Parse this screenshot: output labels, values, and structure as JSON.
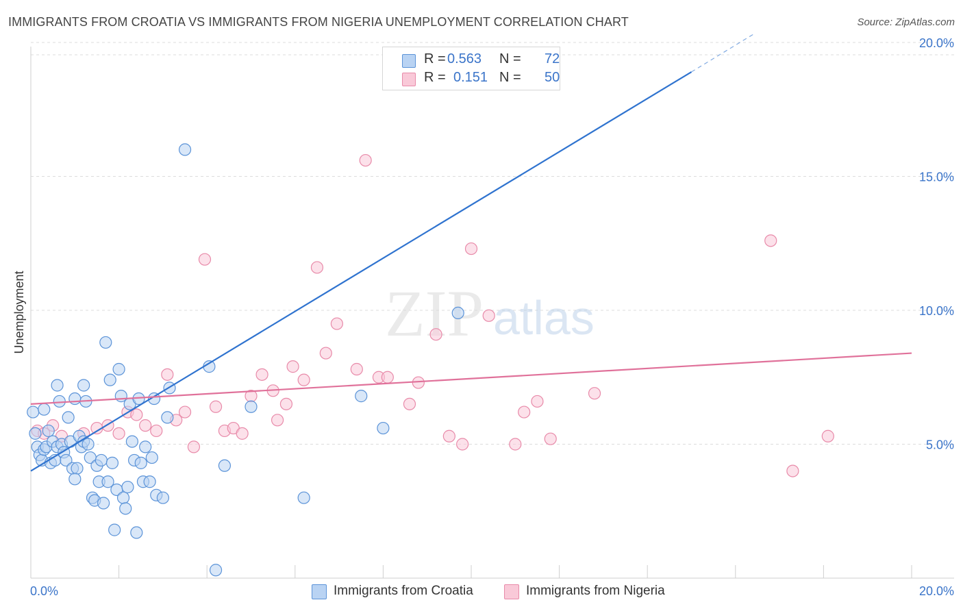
{
  "title": "IMMIGRANTS FROM CROATIA VS IMMIGRANTS FROM NIGERIA UNEMPLOYMENT CORRELATION CHART",
  "source": "Source: ZipAtlas.com",
  "watermark": {
    "zip": "ZIP",
    "atlas": "atlas"
  },
  "colors": {
    "croatia_fill": "#b9d3f3",
    "croatia_stroke": "#5b93d8",
    "croatia_line": "#2f73cf",
    "nigeria_fill": "#f9c9d8",
    "nigeria_stroke": "#e88aa9",
    "nigeria_line": "#e0719a",
    "axis_text": "#3a74c9",
    "grid": "#dcdcdc"
  },
  "legend": {
    "rows": [
      {
        "r_label": "R =",
        "r_value": "0.563",
        "n_label": "N =",
        "n_value": "72"
      },
      {
        "r_label": "R =",
        "r_value": "0.151",
        "n_label": "N =",
        "n_value": "50"
      }
    ],
    "bottom": [
      "Immigrants from Croatia",
      "Immigrants from Nigeria"
    ]
  },
  "chart_data": {
    "type": "scatter",
    "title": "IMMIGRANTS FROM CROATIA VS IMMIGRANTS FROM NIGERIA UNEMPLOYMENT CORRELATION CHART",
    "xlabel": "",
    "ylabel": "Unemployment",
    "xlim": [
      0,
      20
    ],
    "ylim": [
      0,
      20
    ],
    "x_tick_labels": [
      "0.0%",
      "20.0%"
    ],
    "y_ticks": [
      5,
      10,
      15,
      20
    ],
    "y_tick_labels": [
      "5.0%",
      "10.0%",
      "15.0%",
      "20.0%"
    ],
    "grid": true,
    "series": [
      {
        "name": "Immigrants from Croatia",
        "R": 0.563,
        "N": 72,
        "trend": {
          "x": [
            0,
            15
          ],
          "y": [
            4.0,
            18.9
          ],
          "dashed_to": [
            16.4,
            20.3
          ]
        },
        "points": [
          [
            0.05,
            6.2
          ],
          [
            0.1,
            5.4
          ],
          [
            0.15,
            4.9
          ],
          [
            0.2,
            4.6
          ],
          [
            0.25,
            4.4
          ],
          [
            0.3,
            4.8
          ],
          [
            0.35,
            4.9
          ],
          [
            0.4,
            5.5
          ],
          [
            0.45,
            4.3
          ],
          [
            0.5,
            5.1
          ],
          [
            0.55,
            4.4
          ],
          [
            0.6,
            4.9
          ],
          [
            0.65,
            6.6
          ],
          [
            0.7,
            5.0
          ],
          [
            0.75,
            4.7
          ],
          [
            0.8,
            4.4
          ],
          [
            0.85,
            6.0
          ],
          [
            0.9,
            5.1
          ],
          [
            0.95,
            4.1
          ],
          [
            1.0,
            6.7
          ],
          [
            1.05,
            4.1
          ],
          [
            1.1,
            5.3
          ],
          [
            1.15,
            4.9
          ],
          [
            1.2,
            5.1
          ],
          [
            1.25,
            6.6
          ],
          [
            1.3,
            5.0
          ],
          [
            1.35,
            4.5
          ],
          [
            1.4,
            3.0
          ],
          [
            1.45,
            2.9
          ],
          [
            1.5,
            4.2
          ],
          [
            1.55,
            3.6
          ],
          [
            1.6,
            4.4
          ],
          [
            1.65,
            2.8
          ],
          [
            1.7,
            8.8
          ],
          [
            1.75,
            3.6
          ],
          [
            1.8,
            7.4
          ],
          [
            1.85,
            4.3
          ],
          [
            1.9,
            1.8
          ],
          [
            1.95,
            3.3
          ],
          [
            2.05,
            6.8
          ],
          [
            2.1,
            3.0
          ],
          [
            2.15,
            2.6
          ],
          [
            2.2,
            3.4
          ],
          [
            2.25,
            6.5
          ],
          [
            2.3,
            5.1
          ],
          [
            2.35,
            4.4
          ],
          [
            2.4,
            1.7
          ],
          [
            2.45,
            6.7
          ],
          [
            2.5,
            4.3
          ],
          [
            2.55,
            3.6
          ],
          [
            2.6,
            4.9
          ],
          [
            2.7,
            3.6
          ],
          [
            2.75,
            4.5
          ],
          [
            2.8,
            6.7
          ],
          [
            2.85,
            3.1
          ],
          [
            3.0,
            3.0
          ],
          [
            3.1,
            6.0
          ],
          [
            3.15,
            7.1
          ],
          [
            3.5,
            16.0
          ],
          [
            4.05,
            7.9
          ],
          [
            4.2,
            0.3
          ],
          [
            4.4,
            4.2
          ],
          [
            5.0,
            6.4
          ],
          [
            6.2,
            3.0
          ],
          [
            7.5,
            6.8
          ],
          [
            8.0,
            5.6
          ],
          [
            9.7,
            9.9
          ],
          [
            0.3,
            6.3
          ],
          [
            0.6,
            7.2
          ],
          [
            1.2,
            7.2
          ],
          [
            2.0,
            7.8
          ],
          [
            1.0,
            3.7
          ]
        ]
      },
      {
        "name": "Immigrants from Nigeria",
        "R": 0.151,
        "N": 50,
        "trend": {
          "x": [
            0,
            20
          ],
          "y": [
            6.5,
            8.4
          ]
        },
        "points": [
          [
            0.15,
            5.5
          ],
          [
            0.3,
            5.4
          ],
          [
            0.5,
            5.7
          ],
          [
            0.7,
            5.3
          ],
          [
            1.2,
            5.4
          ],
          [
            1.5,
            5.6
          ],
          [
            1.75,
            5.7
          ],
          [
            2.0,
            5.4
          ],
          [
            2.2,
            6.2
          ],
          [
            2.4,
            6.1
          ],
          [
            2.6,
            5.7
          ],
          [
            2.85,
            5.5
          ],
          [
            3.1,
            7.6
          ],
          [
            3.3,
            5.9
          ],
          [
            3.5,
            6.2
          ],
          [
            3.7,
            4.9
          ],
          [
            3.95,
            11.9
          ],
          [
            4.2,
            6.4
          ],
          [
            4.4,
            5.5
          ],
          [
            4.6,
            5.6
          ],
          [
            4.8,
            5.4
          ],
          [
            5.0,
            6.8
          ],
          [
            5.25,
            7.6
          ],
          [
            5.5,
            7.0
          ],
          [
            5.6,
            5.9
          ],
          [
            5.8,
            6.5
          ],
          [
            5.95,
            7.9
          ],
          [
            6.2,
            7.4
          ],
          [
            6.5,
            11.6
          ],
          [
            6.7,
            8.4
          ],
          [
            6.95,
            9.5
          ],
          [
            7.4,
            7.8
          ],
          [
            7.6,
            15.6
          ],
          [
            7.9,
            7.5
          ],
          [
            8.1,
            7.5
          ],
          [
            8.6,
            6.5
          ],
          [
            8.8,
            7.3
          ],
          [
            9.2,
            9.1
          ],
          [
            9.5,
            5.3
          ],
          [
            9.8,
            5.0
          ],
          [
            10.0,
            12.3
          ],
          [
            10.4,
            9.8
          ],
          [
            11.0,
            5.0
          ],
          [
            11.2,
            6.2
          ],
          [
            11.5,
            6.6
          ],
          [
            11.8,
            5.2
          ],
          [
            12.8,
            6.9
          ],
          [
            16.8,
            12.6
          ],
          [
            17.3,
            4.0
          ],
          [
            18.1,
            5.3
          ]
        ]
      }
    ]
  }
}
